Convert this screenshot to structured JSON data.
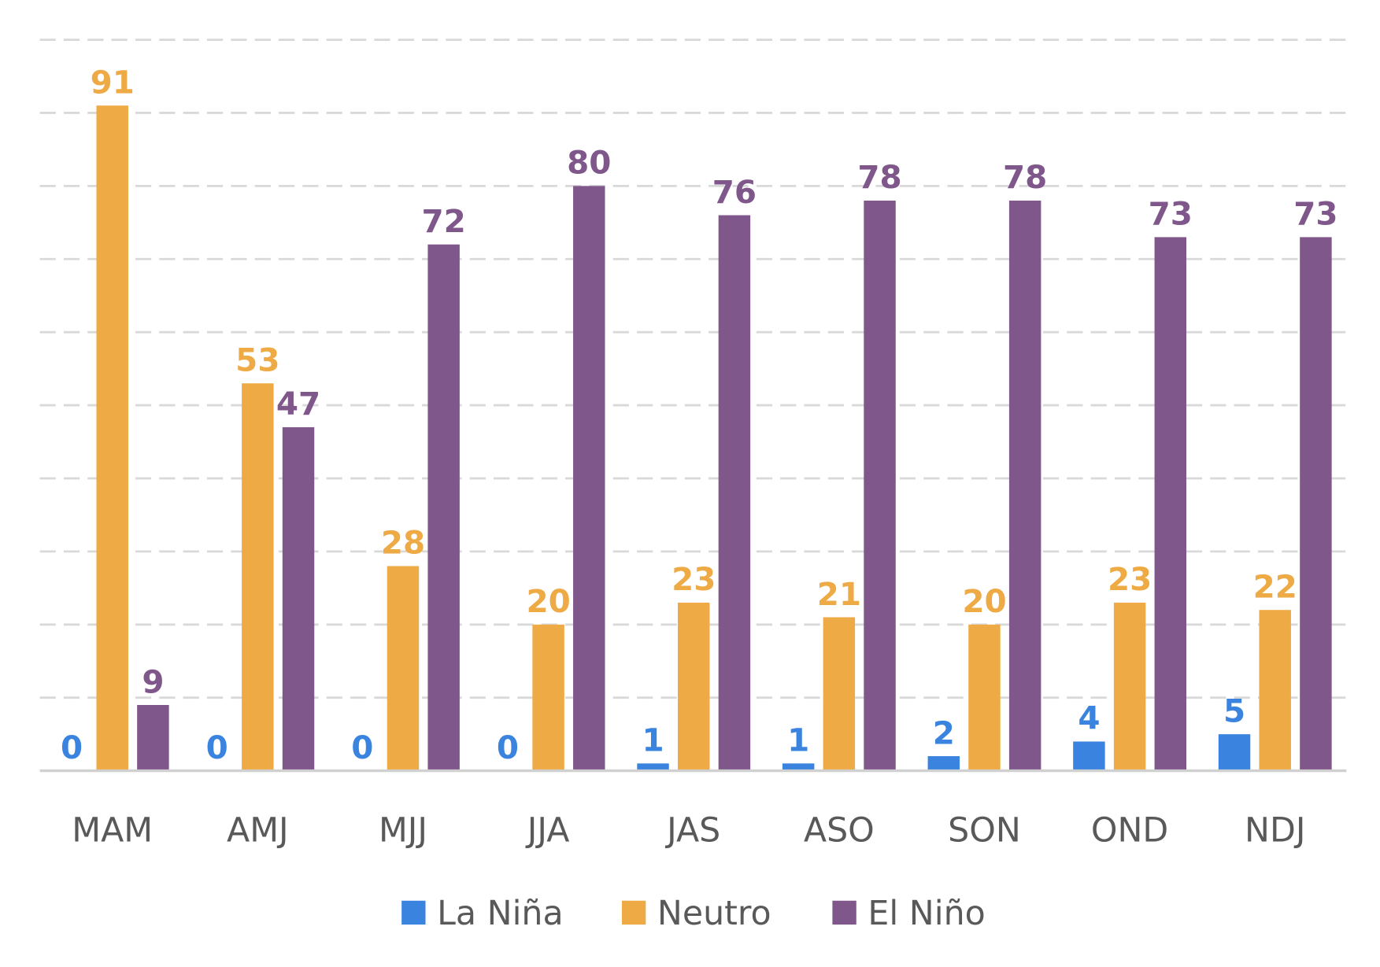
{
  "chart_data": {
    "type": "bar",
    "title": "",
    "xlabel": "",
    "ylabel": "",
    "ylim": [
      0,
      100
    ],
    "grid": true,
    "y_tick_labels_shown": false,
    "legend_position": "bottom",
    "categories": [
      "MAM",
      "AMJ",
      "MJJ",
      "JJA",
      "JAS",
      "ASO",
      "SON",
      "OND",
      "NDJ"
    ],
    "series": [
      {
        "name": "La Niña",
        "color": "#3a84e0",
        "values": [
          0,
          0,
          0,
          0,
          1,
          1,
          2,
          4,
          5
        ]
      },
      {
        "name": "Neutro",
        "color": "#eeaa45",
        "values": [
          91,
          53,
          28,
          20,
          23,
          21,
          20,
          23,
          22
        ]
      },
      {
        "name": "El Niño",
        "color": "#7f578b",
        "values": [
          9,
          47,
          72,
          80,
          76,
          78,
          78,
          73,
          73
        ]
      }
    ]
  }
}
